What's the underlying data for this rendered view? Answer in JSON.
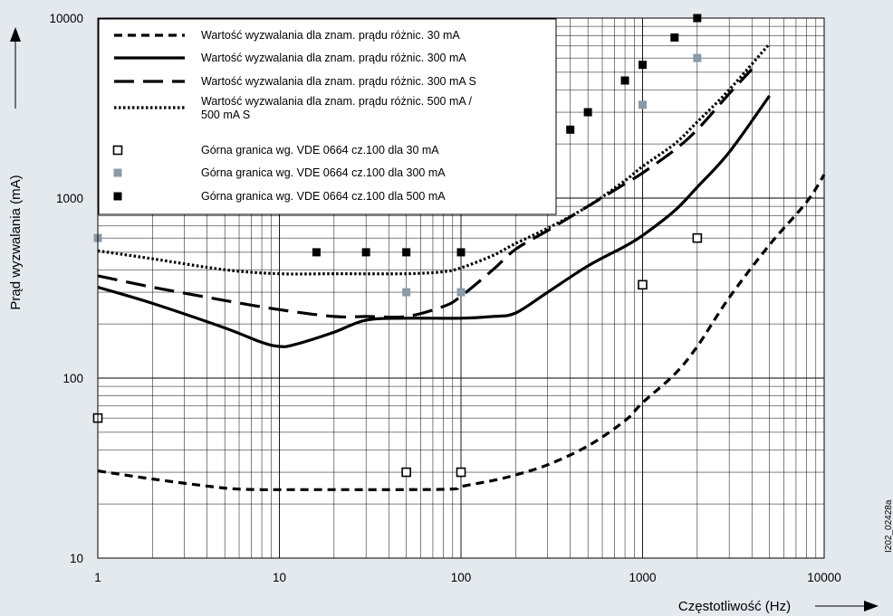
{
  "chart_data": {
    "type": "line",
    "xlabel": "Częstotliwość (Hz)",
    "ylabel": "Prąd wyzwalania (mA)",
    "xscale": "log",
    "yscale": "log",
    "xlim": [
      1,
      10000
    ],
    "ylim": [
      10,
      10000
    ],
    "x_ticks": [
      1,
      10,
      100,
      1000,
      10000
    ],
    "x_tick_labels": [
      "1",
      "10",
      "100",
      "1000",
      "10000"
    ],
    "y_ticks": [
      10,
      100,
      1000,
      10000
    ],
    "y_tick_labels": [
      "10",
      "100",
      "1000",
      "10000"
    ],
    "grid": true,
    "legend_position": "top-left",
    "code_label": "I202_02428a",
    "colors": {
      "background": "#e4e9ee",
      "plot": "#ffffff",
      "line": "#000000",
      "gray_marker": "#8a9aa8"
    },
    "series": [
      {
        "name": "Wartość wyzwalania dla znam. prądu różnic. 30 mA",
        "kind": "line",
        "style": "dashed",
        "x": [
          1,
          2,
          5,
          8,
          10,
          20,
          50,
          90,
          100,
          150,
          200,
          300,
          500,
          800,
          1000,
          1500,
          2000,
          3000,
          5000,
          8000,
          10000
        ],
        "y": [
          30.5,
          27.5,
          24.5,
          24,
          24,
          24,
          24,
          24.2,
          25,
          27,
          29,
          33,
          42,
          58,
          73,
          105,
          150,
          280,
          550,
          950,
          1350
        ]
      },
      {
        "name": "Wartość wyzwalania dla znam. prądu różnic. 300 mA",
        "kind": "line",
        "style": "solid",
        "x": [
          1,
          2,
          5,
          8,
          10,
          12,
          20,
          30,
          50,
          100,
          150,
          200,
          300,
          500,
          800,
          1000,
          1500,
          2000,
          3000,
          5000
        ],
        "y": [
          320,
          260,
          190,
          158,
          150,
          153,
          180,
          210,
          215,
          215,
          220,
          230,
          300,
          420,
          540,
          620,
          850,
          1150,
          1800,
          3700
        ]
      },
      {
        "name": "Wartość wyzwalania dla znam. prądu różnic. 300 mA S",
        "kind": "line",
        "style": "longdash",
        "x": [
          1,
          2,
          5,
          10,
          20,
          30,
          50,
          80,
          100,
          150,
          200,
          300,
          500,
          800,
          1000,
          1500,
          2000,
          3000,
          4000
        ],
        "y": [
          370,
          320,
          270,
          240,
          220,
          220,
          220,
          250,
          285,
          400,
          520,
          660,
          900,
          1200,
          1380,
          1850,
          2400,
          3800,
          5200
        ]
      },
      {
        "name": "Wartość wyzwalania dla znam. prądu różnic. 500 mA / 500 mA S",
        "kind": "line",
        "style": "dotted",
        "x": [
          1,
          2,
          5,
          10,
          20,
          50,
          80,
          100,
          150,
          200,
          300,
          500,
          800,
          1000,
          1500,
          2000,
          3000,
          5000
        ],
        "y": [
          510,
          460,
          400,
          380,
          380,
          380,
          390,
          410,
          480,
          560,
          680,
          900,
          1250,
          1500,
          2000,
          2650,
          4000,
          7200
        ]
      },
      {
        "name": "Górna granica wg. VDE 0664 cz.100 dla 30 mA",
        "kind": "marker",
        "marker": "open-square",
        "x": [
          1,
          50,
          100,
          1000,
          2000
        ],
        "y": [
          60,
          30,
          30,
          330,
          600
        ]
      },
      {
        "name": "Górna granica wg. VDE 0664 cz.100 dla 300 mA",
        "kind": "marker",
        "marker": "gray-square",
        "x": [
          1,
          50,
          100,
          1000,
          2000
        ],
        "y": [
          600,
          300,
          300,
          3300,
          6000
        ]
      },
      {
        "name": "Górna granica wg. VDE 0664 cz.100 dla 500 mA",
        "kind": "marker",
        "marker": "black-square",
        "x": [
          16,
          30,
          50,
          100,
          400,
          500,
          800,
          1000,
          1500,
          2000
        ],
        "y": [
          500,
          500,
          500,
          500,
          2400,
          3000,
          4500,
          5500,
          7800,
          10000
        ]
      }
    ],
    "legend": [
      {
        "text": "Wartość wyzwalania dla znam. prądu różnic. 30 mA"
      },
      {
        "text": "Wartość wyzwalania dla znam. prądu różnic. 300 mA"
      },
      {
        "text": "Wartość wyzwalania dla znam. prądu różnic. 300 mA S"
      },
      {
        "text": "Wartość wyzwalania dla znam. prądu różnic. 500 mA /",
        "text2": "500 mA S"
      },
      {
        "text": "Górna granica wg. VDE 0664 cz.100 dla 30 mA"
      },
      {
        "text": "Górna granica wg. VDE 0664 cz.100 dla 300 mA"
      },
      {
        "text": "Górna granica wg. VDE 0664 cz.100 dla 500 mA"
      }
    ]
  }
}
